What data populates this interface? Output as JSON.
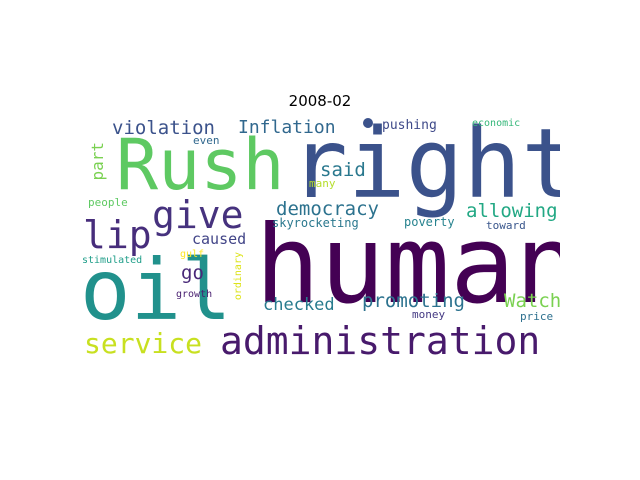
{
  "title": "2008-02",
  "words": [
    {
      "text": "human",
      "color": "#440154"
    },
    {
      "text": "right",
      "color": "#3b528b"
    },
    {
      "text": "Rush",
      "color": "#5ec962"
    },
    {
      "text": "oil",
      "color": "#21918c"
    },
    {
      "text": "administration",
      "color": "#481a6c"
    },
    {
      "text": "give",
      "color": "#46327e"
    },
    {
      "text": "lip",
      "color": "#472d7b"
    },
    {
      "text": "service",
      "color": "#c8e020"
    },
    {
      "text": "violation",
      "color": "#3b528b"
    },
    {
      "text": "Inflation",
      "color": "#31688e"
    },
    {
      "text": "democracy",
      "color": "#2c728e"
    },
    {
      "text": "allowing",
      "color": "#22a884"
    },
    {
      "text": "said",
      "color": "#2a788e"
    },
    {
      "text": "promoting",
      "color": "#2c728e"
    },
    {
      "text": "Watch",
      "color": "#7ad151"
    },
    {
      "text": "checked",
      "color": "#287c8e"
    },
    {
      "text": "caused",
      "color": "#414487"
    },
    {
      "text": "go",
      "color": "#482878"
    },
    {
      "text": "part",
      "color": "#7ad151"
    },
    {
      "text": "pushing",
      "color": "#3e4989"
    },
    {
      "text": "economic",
      "color": "#35b779"
    },
    {
      "text": "even",
      "color": "#31688e"
    },
    {
      "text": "many",
      "color": "#b5de2b"
    },
    {
      "text": "people",
      "color": "#5ec962"
    },
    {
      "text": "skyrocketing",
      "color": "#2a788e"
    },
    {
      "text": "poverty",
      "color": "#26828e"
    },
    {
      "text": "toward",
      "color": "#39568c"
    },
    {
      "text": "gulf",
      "color": "#fde725"
    },
    {
      "text": "stimulated",
      "color": "#1f9e89"
    },
    {
      "text": "growth",
      "color": "#481f70"
    },
    {
      "text": "ordinary",
      "color": "#dde318"
    },
    {
      "text": "money",
      "color": "#443983"
    },
    {
      "text": "price",
      "color": "#2d708e"
    }
  ]
}
